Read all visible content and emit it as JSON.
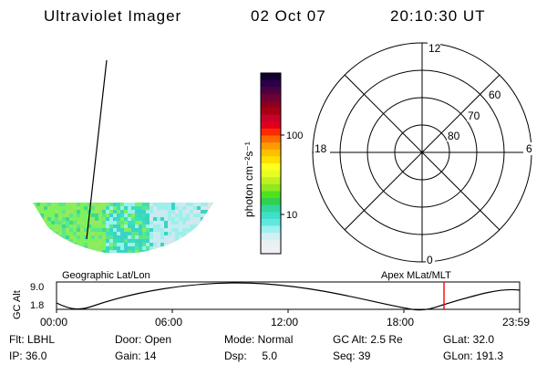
{
  "header": {
    "instrument": "Ultraviolet Imager",
    "date": "02 Oct 07",
    "time": "20:10:30 UT"
  },
  "colorbar": {
    "label": "photon cm⁻²s⁻¹",
    "tick_labels": [
      "100",
      "10"
    ],
    "colors": [
      "#14002e",
      "#2a0048",
      "#4b0040",
      "#6e0038",
      "#8a0020",
      "#a80012",
      "#c8002a",
      "#e0001c",
      "#ff2a00",
      "#ff6a00",
      "#ff9a00",
      "#ffc000",
      "#ffe000",
      "#ffff20",
      "#e6ff20",
      "#c0f020",
      "#90e820",
      "#50e020",
      "#30d050",
      "#30d8a0",
      "#40e0c8",
      "#60e8e0",
      "#a0f0f0",
      "#d0f0f4",
      "#e8f0f4",
      "#f0f0f4"
    ]
  },
  "image_panel": {
    "label": "Geographic Lat/Lon",
    "palette": [
      "#7cf25c",
      "#5ce68c",
      "#38e0b8",
      "#3ad4c4",
      "#9cf0ec",
      "#c8eaf0",
      "#dce4ec",
      "#98e860",
      "#40d890"
    ]
  },
  "polar_plot": {
    "label": "Apex MLat/MLT",
    "mlt_labels": {
      "top": "12",
      "left": "18",
      "right": "6",
      "bottom": "0"
    },
    "lat_labels": [
      "60",
      "70",
      "80"
    ]
  },
  "altitude_plot": {
    "y_label": "GC Alt",
    "y_ticks": [
      "9.0",
      "1.8"
    ],
    "x_ticks": [
      "00:00",
      "06:00",
      "12:00",
      "18:00",
      "23:59"
    ],
    "marker_color": "#ff0000"
  },
  "info": {
    "row1": [
      "Flt: LBHL",
      "Door: Open",
      "Mode: Normal",
      "GC Alt: 2.5 Re",
      "GLat: 32.0"
    ],
    "row2": [
      "IP: 36.0",
      "Gain: 14",
      "Dsp:     5.0",
      "Seq: 39",
      "GLon: 191.3"
    ]
  }
}
